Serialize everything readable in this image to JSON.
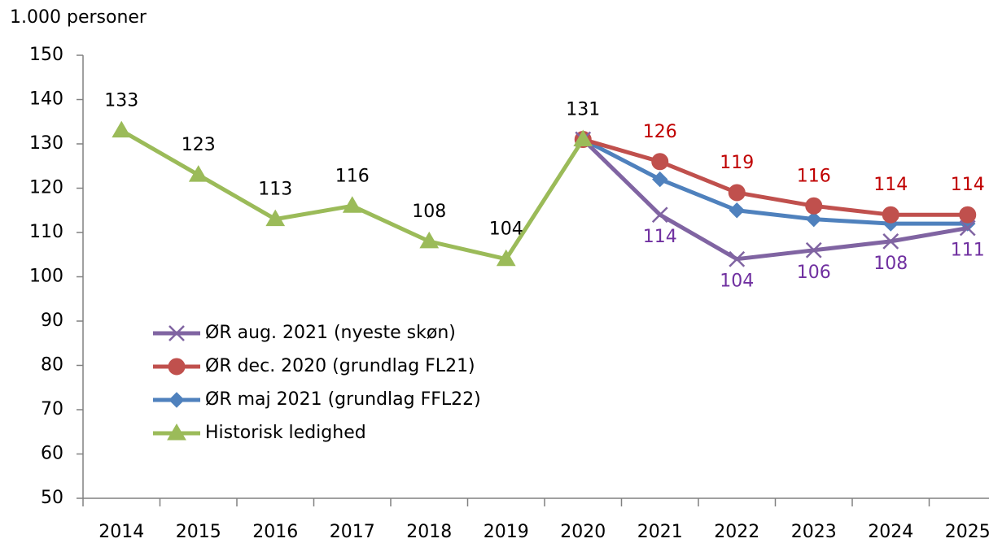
{
  "chart_data": {
    "type": "line",
    "y_axis_label": "1.000 personer",
    "categories": [
      "2014",
      "2015",
      "2016",
      "2017",
      "2018",
      "2019",
      "2020",
      "2021",
      "2022",
      "2023",
      "2024",
      "2025"
    ],
    "ylim": [
      50,
      150
    ],
    "yticks": [
      50,
      60,
      70,
      80,
      90,
      100,
      110,
      120,
      130,
      140,
      150
    ],
    "series": [
      {
        "name": "ØR aug. 2021 (nyeste skøn)",
        "color": "#8064a2",
        "label_color": "#7030a0",
        "marker": "x",
        "label_position": "below",
        "values": [
          null,
          null,
          null,
          null,
          null,
          null,
          131,
          114,
          104,
          106,
          108,
          111
        ],
        "value_labels": [
          null,
          null,
          null,
          null,
          null,
          null,
          null,
          "114",
          "104",
          "106",
          "108",
          "111"
        ]
      },
      {
        "name": "ØR dec. 2020 (grundlag FL21)",
        "color": "#c0504d",
        "label_color": "#c00000",
        "marker": "circle",
        "label_position": "above",
        "values": [
          null,
          null,
          null,
          null,
          null,
          null,
          131,
          126,
          119,
          116,
          114,
          114
        ],
        "value_labels": [
          null,
          null,
          null,
          null,
          null,
          null,
          null,
          "126",
          "119",
          "116",
          "114",
          "114"
        ]
      },
      {
        "name": "ØR maj 2021 (grundlag FFL22)",
        "color": "#4f81bd",
        "marker": "diamond",
        "values": [
          null,
          null,
          null,
          null,
          null,
          null,
          131,
          122,
          115,
          113,
          112,
          112
        ]
      },
      {
        "name": "Historisk ledighed",
        "color": "#9bbb59",
        "label_color": "#000000",
        "marker": "triangle",
        "label_position": "above",
        "values": [
          133,
          123,
          113,
          116,
          108,
          104,
          131,
          null,
          null,
          null,
          null,
          null
        ],
        "value_labels": [
          "133",
          "123",
          "113",
          "116",
          "108",
          "104",
          "131",
          null,
          null,
          null,
          null,
          null
        ]
      }
    ]
  }
}
